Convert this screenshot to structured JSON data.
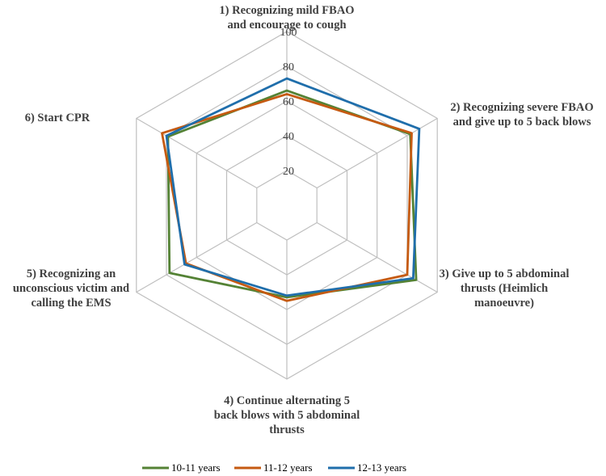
{
  "chart_data": {
    "type": "radar",
    "categories": [
      [
        "1) Recognizing mild FBAO",
        "and encourage to cough"
      ],
      [
        "2) Recognizing severe FBAO",
        "and give up to 5 back blows"
      ],
      [
        "3) Give up to 5 abdominal",
        "thrusts (Heimlich",
        "manoeuvre)"
      ],
      [
        "4) Continue alternating 5",
        "back blows with 5 abdominal",
        "thrusts"
      ],
      [
        "5) Recognizing an",
        "unconscious victim and",
        "calling the EMS"
      ],
      [
        "6) Start CPR"
      ]
    ],
    "rlim": [
      0,
      100
    ],
    "rticks": [
      20,
      40,
      60,
      80,
      100
    ],
    "series": [
      {
        "name": "10-11 years",
        "color": "#548235",
        "values": [
          66,
          82,
          86,
          53,
          78,
          79
        ]
      },
      {
        "name": "11-12 years",
        "color": "#C55A11",
        "values": [
          64,
          83,
          80,
          55,
          67,
          83
        ]
      },
      {
        "name": "12-13 years",
        "color": "#1F6EAB",
        "values": [
          73,
          88,
          84,
          52,
          68,
          80
        ]
      }
    ],
    "grid": true,
    "legend": "bottom"
  }
}
